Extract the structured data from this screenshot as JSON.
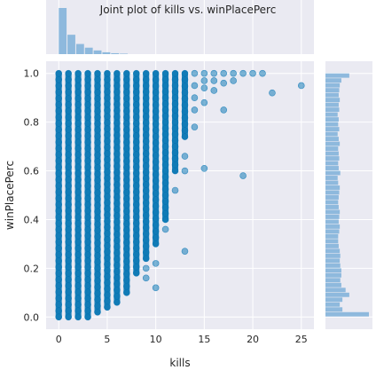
{
  "chart_data": {
    "type": "scatter",
    "title": "Joint plot of kills vs. winPlacePerc",
    "xlabel": "kills",
    "ylabel": "winPlacePerc",
    "xlim": [
      -1.3,
      26.3
    ],
    "ylim": [
      -0.05,
      1.05
    ],
    "x_ticks": [
      0,
      5,
      10,
      15,
      20,
      25
    ],
    "y_ticks": [
      0.0,
      0.2,
      0.4,
      0.6,
      0.8,
      1.0
    ],
    "x_tick_labels": [
      "0",
      "5",
      "10",
      "15",
      "20",
      "25"
    ],
    "y_tick_labels": [
      "0.0",
      "0.2",
      "0.4",
      "0.6",
      "0.8",
      "1.0"
    ],
    "grid": true,
    "point_color": "#0072b2",
    "background_color": "#eaeaf2",
    "columns": [
      {
        "x": 0,
        "ymin": 0.0,
        "ymax": 1.0
      },
      {
        "x": 1,
        "ymin": 0.0,
        "ymax": 1.0
      },
      {
        "x": 2,
        "ymin": 0.0,
        "ymax": 1.0
      },
      {
        "x": 3,
        "ymin": 0.0,
        "ymax": 1.0
      },
      {
        "x": 4,
        "ymin": 0.02,
        "ymax": 1.0
      },
      {
        "x": 5,
        "ymin": 0.04,
        "ymax": 1.0
      },
      {
        "x": 6,
        "ymin": 0.06,
        "ymax": 1.0
      },
      {
        "x": 7,
        "ymin": 0.1,
        "ymax": 1.0
      },
      {
        "x": 8,
        "ymin": 0.18,
        "ymax": 1.0
      },
      {
        "x": 9,
        "ymin": 0.24,
        "ymax": 1.0
      },
      {
        "x": 10,
        "ymin": 0.3,
        "ymax": 1.0
      },
      {
        "x": 11,
        "ymin": 0.4,
        "ymax": 1.0
      },
      {
        "x": 12,
        "ymin": 0.6,
        "ymax": 1.0
      },
      {
        "x": 13,
        "ymin": 0.74,
        "ymax": 1.0
      }
    ],
    "points": [
      {
        "x": 9,
        "y": 0.2
      },
      {
        "x": 9,
        "y": 0.16
      },
      {
        "x": 10,
        "y": 0.12
      },
      {
        "x": 10,
        "y": 0.22
      },
      {
        "x": 11,
        "y": 0.36
      },
      {
        "x": 12,
        "y": 0.52
      },
      {
        "x": 13,
        "y": 0.27
      },
      {
        "x": 13,
        "y": 0.6
      },
      {
        "x": 13,
        "y": 0.66
      },
      {
        "x": 14,
        "y": 0.78
      },
      {
        "x": 14,
        "y": 0.85
      },
      {
        "x": 14,
        "y": 0.9
      },
      {
        "x": 14,
        "y": 0.95
      },
      {
        "x": 14,
        "y": 1.0
      },
      {
        "x": 15,
        "y": 0.61
      },
      {
        "x": 15,
        "y": 0.88
      },
      {
        "x": 15,
        "y": 0.94
      },
      {
        "x": 15,
        "y": 0.97
      },
      {
        "x": 15,
        "y": 1.0
      },
      {
        "x": 16,
        "y": 0.93
      },
      {
        "x": 16,
        "y": 0.97
      },
      {
        "x": 16,
        "y": 1.0
      },
      {
        "x": 17,
        "y": 0.85
      },
      {
        "x": 17,
        "y": 0.96
      },
      {
        "x": 17,
        "y": 1.0
      },
      {
        "x": 18,
        "y": 0.97
      },
      {
        "x": 18,
        "y": 1.0
      },
      {
        "x": 19,
        "y": 0.58
      },
      {
        "x": 19,
        "y": 1.0
      },
      {
        "x": 20,
        "y": 1.0
      },
      {
        "x": 21,
        "y": 1.0
      },
      {
        "x": 22,
        "y": 0.92
      },
      {
        "x": 25,
        "y": 0.95
      }
    ],
    "marginal_x": {
      "bin_width": 0.9,
      "x_start": 0,
      "values": [
        1.0,
        0.42,
        0.22,
        0.14,
        0.08,
        0.04,
        0.02,
        0.01
      ]
    },
    "marginal_y": {
      "bin_width": 0.02,
      "y_start": 0.0,
      "values": [
        0.82,
        0.32,
        0.27,
        0.32,
        0.45,
        0.38,
        0.3,
        0.28,
        0.3,
        0.3,
        0.28,
        0.27,
        0.28,
        0.27,
        0.25,
        0.24,
        0.24,
        0.26,
        0.27,
        0.25,
        0.26,
        0.27,
        0.25,
        0.24,
        0.25,
        0.26,
        0.27,
        0.24,
        0.23,
        0.28,
        0.25,
        0.24,
        0.26,
        0.25,
        0.24,
        0.27,
        0.25,
        0.23,
        0.26,
        0.24,
        0.25,
        0.23,
        0.26,
        0.25,
        0.27,
        0.25,
        0.26,
        0.27,
        0.3,
        0.45
      ]
    }
  }
}
